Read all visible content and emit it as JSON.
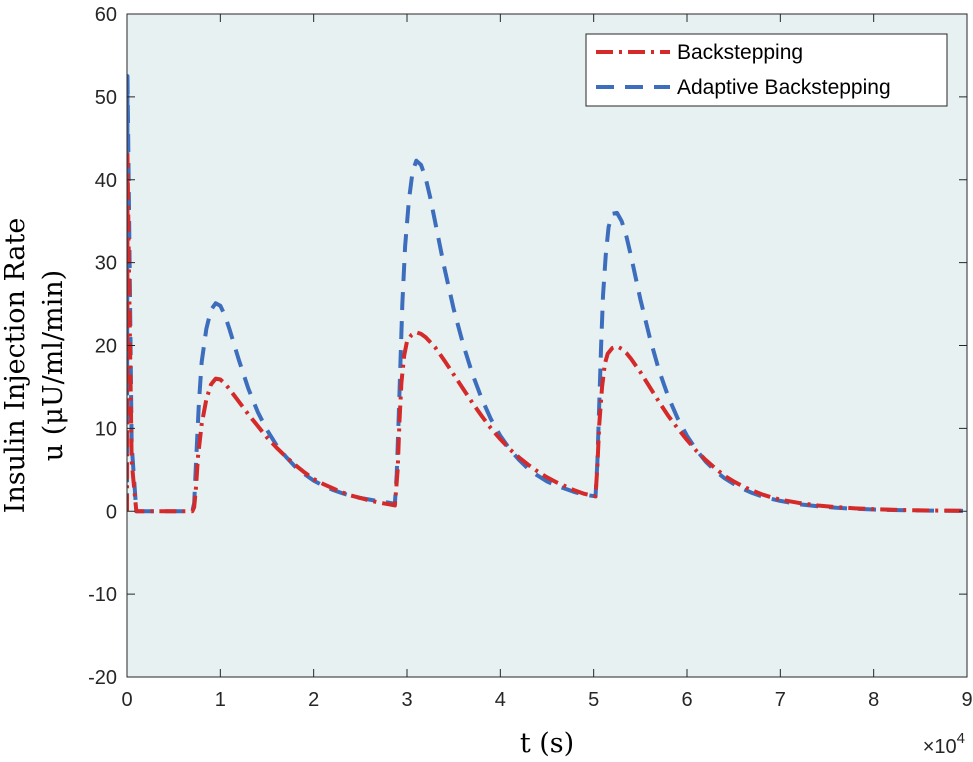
{
  "chart_data": {
    "type": "line",
    "title": "",
    "xlabel": "t (s)",
    "ylabel_line1": "Insulin Injection Rate",
    "ylabel_line2": "u (μU/ml/min)",
    "x_exponent_prefix": "×10",
    "x_exponent": "4",
    "xlim": [
      0,
      9
    ],
    "ylim": [
      -20,
      60
    ],
    "xticks": [
      0,
      1,
      2,
      3,
      4,
      5,
      6,
      7,
      8,
      9
    ],
    "yticks": [
      -20,
      -10,
      0,
      10,
      20,
      30,
      40,
      50,
      60
    ],
    "xtick_labels": [
      "0",
      "1",
      "2",
      "3",
      "4",
      "5",
      "6",
      "7",
      "8",
      "9"
    ],
    "ytick_labels": [
      "-20",
      "-10",
      "0",
      "10",
      "20",
      "30",
      "40",
      "50",
      "60"
    ],
    "grid": false,
    "background": "#e8f1f2",
    "legend": {
      "position": "top-right"
    },
    "series": [
      {
        "name": "Backstepping",
        "color": "#d42a2a",
        "style": "dash-dot",
        "x": [
          0,
          0.005,
          0.02,
          0.05,
          0.1,
          0.7,
          0.72,
          0.74,
          0.76,
          0.8,
          0.85,
          0.9,
          0.95,
          1.0,
          1.05,
          1.1,
          1.2,
          1.3,
          1.4,
          1.5,
          1.6,
          1.7,
          1.8,
          1.9,
          2.0,
          2.1,
          2.2,
          2.3,
          2.4,
          2.5,
          2.6,
          2.7,
          2.8,
          2.87,
          2.9,
          2.92,
          2.94,
          2.97,
          3.0,
          3.05,
          3.1,
          3.15,
          3.2,
          3.3,
          3.4,
          3.5,
          3.6,
          3.7,
          3.8,
          3.9,
          4.0,
          4.1,
          4.2,
          4.3,
          4.4,
          4.5,
          4.6,
          4.7,
          4.8,
          4.9,
          5.02,
          5.04,
          5.06,
          5.09,
          5.12,
          5.15,
          5.2,
          5.25,
          5.3,
          5.35,
          5.4,
          5.5,
          5.6,
          5.7,
          5.8,
          5.9,
          6.0,
          6.1,
          6.2,
          6.3,
          6.4,
          6.5,
          6.6,
          6.7,
          6.8,
          6.9,
          7.0,
          7.2,
          7.4,
          7.6,
          7.8,
          8.0,
          8.2,
          8.4,
          8.6,
          8.8,
          9.0
        ],
        "y": [
          0,
          43,
          30,
          6,
          0,
          0,
          0.5,
          3,
          6.5,
          10.5,
          13.5,
          15.3,
          16.0,
          15.9,
          15.4,
          14.7,
          13.2,
          11.7,
          10.3,
          8.9,
          7.7,
          6.6,
          5.6,
          4.7,
          3.9,
          3.3,
          2.8,
          2.3,
          1.9,
          1.6,
          1.3,
          1.05,
          0.85,
          0.7,
          5,
          11,
          15.5,
          18.8,
          20.5,
          21.3,
          21.6,
          21.4,
          21.0,
          19.8,
          18.2,
          16.5,
          14.8,
          13.1,
          11.5,
          10.0,
          8.7,
          7.5,
          6.5,
          5.6,
          4.8,
          4.1,
          3.5,
          3.0,
          2.5,
          2.1,
          1.8,
          5.5,
          10.5,
          15,
          17.8,
          19.0,
          19.7,
          19.9,
          19.6,
          19.1,
          18.4,
          16.8,
          15.0,
          13.2,
          11.5,
          10.0,
          8.6,
          7.3,
          6.2,
          5.2,
          4.3,
          3.6,
          3.0,
          2.5,
          2.05,
          1.7,
          1.4,
          1.0,
          0.7,
          0.5,
          0.35,
          0.25,
          0.18,
          0.13,
          0.09,
          0.07,
          0.05
        ]
      },
      {
        "name": "Adaptive Backstepping",
        "color": "#3d6ebd",
        "style": "dashed",
        "x": [
          0,
          0.005,
          0.02,
          0.05,
          0.1,
          0.7,
          0.72,
          0.74,
          0.77,
          0.8,
          0.85,
          0.9,
          0.95,
          1.0,
          1.05,
          1.1,
          1.2,
          1.3,
          1.4,
          1.5,
          1.6,
          1.7,
          1.8,
          1.9,
          2.0,
          2.1,
          2.2,
          2.3,
          2.4,
          2.5,
          2.6,
          2.7,
          2.8,
          2.87,
          2.89,
          2.91,
          2.93,
          2.95,
          2.98,
          3.02,
          3.06,
          3.1,
          3.15,
          3.2,
          3.25,
          3.3,
          3.4,
          3.5,
          3.6,
          3.7,
          3.8,
          3.9,
          4.0,
          4.1,
          4.2,
          4.3,
          4.4,
          4.5,
          4.6,
          4.7,
          4.8,
          4.9,
          5.02,
          5.04,
          5.06,
          5.08,
          5.1,
          5.13,
          5.16,
          5.2,
          5.25,
          5.3,
          5.35,
          5.4,
          5.5,
          5.6,
          5.7,
          5.8,
          5.9,
          6.0,
          6.1,
          6.2,
          6.3,
          6.4,
          6.5,
          6.6,
          6.7,
          6.8,
          6.9,
          7.0,
          7.2,
          7.4,
          7.6,
          7.8,
          8.0,
          8.2,
          8.4,
          8.6,
          8.8,
          9.0
        ],
        "y": [
          0,
          52.5,
          38,
          8,
          0,
          0,
          1,
          6,
          13,
          18,
          22,
          24.3,
          25.1,
          24.8,
          23.6,
          21.9,
          18.2,
          14.8,
          12.0,
          9.8,
          8.0,
          6.6,
          5.4,
          4.5,
          3.7,
          3.1,
          2.6,
          2.2,
          1.85,
          1.6,
          1.4,
          1.2,
          1.05,
          0.9,
          4.5,
          11,
          18,
          25,
          32,
          37.5,
          41,
          42.3,
          41.8,
          40.2,
          37.8,
          35.0,
          29.4,
          24.4,
          20.2,
          16.6,
          13.6,
          11.1,
          9.1,
          7.5,
          6.2,
          5.1,
          4.3,
          3.6,
          3.1,
          2.7,
          2.3,
          2.0,
          1.8,
          6,
          13,
          20,
          26,
          31,
          34.3,
          35.9,
          36.0,
          35.0,
          33.2,
          30.8,
          25.6,
          21.0,
          17.0,
          13.8,
          11.2,
          9.1,
          7.4,
          6.0,
          4.9,
          4.0,
          3.3,
          2.7,
          2.2,
          1.8,
          1.5,
          1.25,
          0.85,
          0.6,
          0.42,
          0.3,
          0.21,
          0.15,
          0.11,
          0.08,
          0.06,
          0.05
        ]
      }
    ]
  }
}
